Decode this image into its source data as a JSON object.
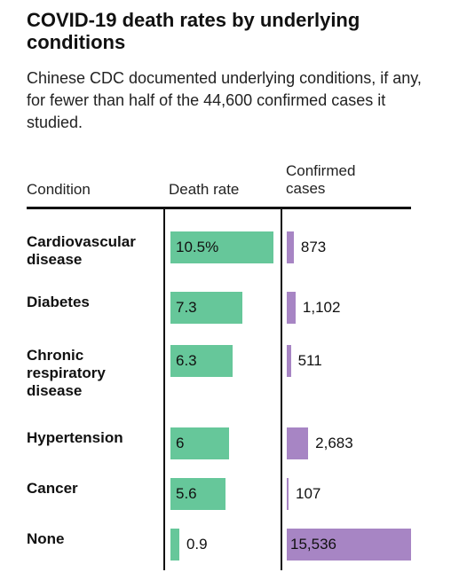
{
  "header": {
    "title": "COVID-19 death rates by underlying conditions",
    "subtitle": "Chinese CDC documented underlying conditions, if any, for fewer than half of the 44,600 confirmed cases it studied."
  },
  "colors": {
    "death_rate": "#66c79a",
    "cases": "#a785c4"
  },
  "chart_data": {
    "type": "bar",
    "title": "COVID-19 death rates by underlying conditions",
    "subtitle": "Chinese CDC documented underlying conditions, if any, for fewer than half of the 44,600 confirmed cases it studied.",
    "columns": {
      "condition": "Condition",
      "death_rate": "Death rate",
      "cases": "Confirmed cases"
    },
    "categories": [
      "Cardiovascular disease",
      "Diabetes",
      "Chronic respiratory disease",
      "Hypertension",
      "Cancer",
      "None"
    ],
    "series": [
      {
        "name": "Death rate",
        "values": [
          10.5,
          7.3,
          6.3,
          6,
          5.6,
          0.9
        ],
        "labels": [
          "10.5%",
          "7.3",
          "6.3",
          "6",
          "5.6",
          "0.9"
        ]
      },
      {
        "name": "Confirmed cases",
        "values": [
          873,
          1102,
          511,
          2683,
          107,
          15536
        ],
        "labels": [
          "873",
          "1,102",
          "511",
          "2,683",
          "107",
          "15,536"
        ]
      }
    ]
  }
}
